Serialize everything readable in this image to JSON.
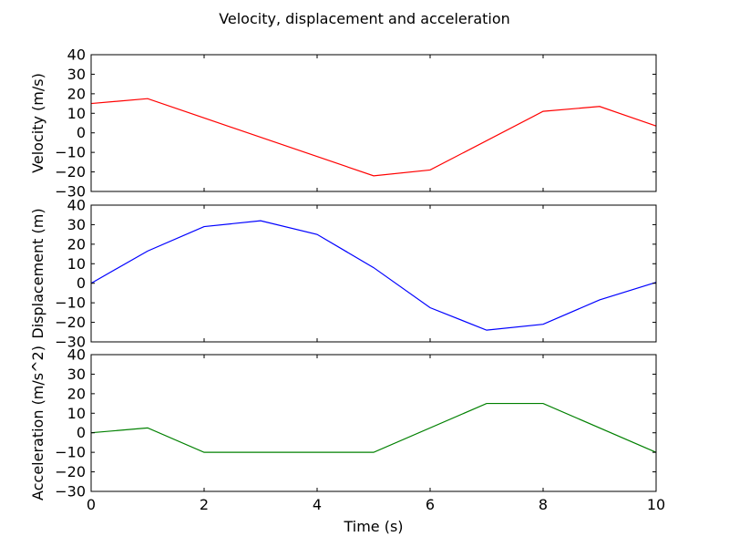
{
  "chart_data": {
    "title": "Velocity, displacement and acceleration",
    "xlabel": "Time (s)",
    "xlim": [
      0,
      10
    ],
    "x_ticks": [
      "0",
      "2",
      "4",
      "6",
      "8",
      "10"
    ],
    "shared_x": true,
    "grid": false,
    "subplots": [
      {
        "type": "line",
        "ylabel": "Velocity (m/s)",
        "ylim": [
          -30,
          40
        ],
        "y_ticks": [
          "40",
          "30",
          "20",
          "10",
          "0",
          "−10",
          "−20",
          "−30"
        ],
        "series": [
          {
            "color": "#ff0000",
            "x": [
              0,
              1,
              5,
              6,
              8,
              9,
              10
            ],
            "y": [
              15,
              17.5,
              -22,
              -19,
              11,
              13.5,
              3.5
            ]
          }
        ]
      },
      {
        "type": "line",
        "ylabel": "Displacement (m)",
        "ylim": [
          -30,
          40
        ],
        "y_ticks": [
          "40",
          "30",
          "20",
          "10",
          "0",
          "−10",
          "−20",
          "−30"
        ],
        "series": [
          {
            "color": "#0000ff",
            "x": [
              0,
              1,
              2,
              3,
              4,
              5,
              6,
              7,
              8,
              9,
              10
            ],
            "y": [
              0,
              16.5,
              29,
              32,
              25,
              8,
              -12.5,
              -24,
              -21,
              -8.5,
              0.5
            ]
          }
        ]
      },
      {
        "type": "line",
        "ylabel": "Acceleration (m/s^2)",
        "ylim": [
          -30,
          40
        ],
        "y_ticks": [
          "40",
          "30",
          "20",
          "10",
          "0",
          "−10",
          "−20",
          "−30"
        ],
        "series": [
          {
            "color": "#008000",
            "x": [
              0,
              1,
              2,
              5,
              7,
              8,
              10
            ],
            "y": [
              0,
              2.5,
              -10,
              -10,
              15,
              15,
              -10
            ]
          }
        ]
      }
    ]
  }
}
